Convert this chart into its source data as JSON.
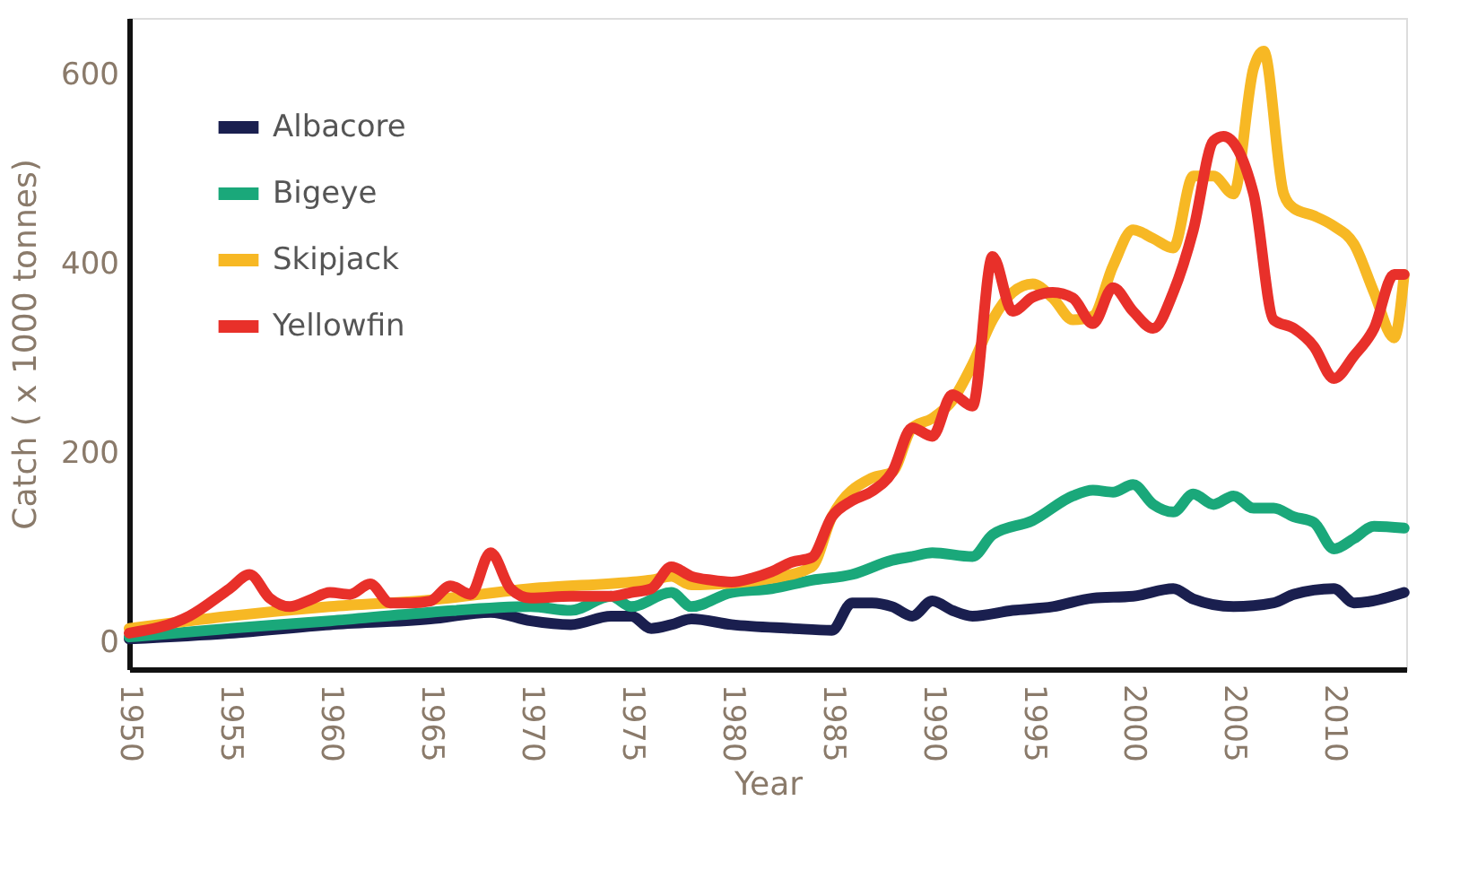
{
  "chart_data": {
    "type": "line",
    "xlabel": "Year",
    "ylabel": "Catch ( x 1000 tonnes)",
    "xlim": [
      1950,
      2013.6
    ],
    "xticks": [
      1950,
      1955,
      1960,
      1965,
      1970,
      1975,
      1980,
      1985,
      1990,
      1995,
      2000,
      2005,
      2010
    ],
    "ylim": [
      -28,
      660
    ],
    "yticks": [
      0,
      200,
      400,
      600
    ],
    "grid": false,
    "legend": "top left",
    "marker": "none",
    "line_style": "solid",
    "series": [
      {
        "name": "Albacore",
        "color": "#1a1f4f",
        "x": [
          1950,
          1955,
          1960,
          1965,
          1968,
          1970,
          1972,
          1974,
          1975,
          1976,
          1977,
          1978,
          1980,
          1983,
          1985,
          1986,
          1987,
          1988,
          1989,
          1990,
          1991,
          1992,
          1994,
          1996,
          1998,
          2000,
          2002,
          2003,
          2005,
          2007,
          2008,
          2010,
          2011,
          2013.5
        ],
        "values": [
          4,
          10,
          19,
          25,
          32,
          23,
          19,
          28,
          28,
          15,
          19,
          25,
          19,
          15,
          13,
          42,
          42,
          38,
          28,
          44,
          34,
          28,
          34,
          38,
          47,
          49,
          57,
          46,
          38,
          42,
          51,
          57,
          42,
          53
        ]
      },
      {
        "name": "Bigeye",
        "color": "#1aa87a",
        "x": [
          1950,
          1955,
          1960,
          1965,
          1970,
          1972,
          1974,
          1975,
          1977,
          1978,
          1980,
          1982,
          1984,
          1986,
          1988,
          1989,
          1990,
          1992,
          1993,
          1995,
          1997,
          1998,
          1999,
          2000,
          2001,
          2002,
          2003,
          2004,
          2005,
          2006,
          2007,
          2008,
          2009,
          2010,
          2011,
          2012,
          2013.5
        ],
        "values": [
          6,
          15,
          23,
          32,
          38,
          34,
          49,
          38,
          53,
          38,
          53,
          57,
          66,
          72,
          87,
          91,
          95,
          91,
          114,
          129,
          155,
          161,
          159,
          167,
          146,
          138,
          157,
          146,
          155,
          142,
          142,
          133,
          127,
          99,
          110,
          123,
          121
        ]
      },
      {
        "name": "Skipjack",
        "color": "#f7b824",
        "x": [
          1950,
          1955,
          1960,
          1965,
          1970,
          1975,
          1976,
          1977,
          1978,
          1980,
          1982,
          1984,
          1985,
          1987,
          1988,
          1989,
          1990,
          1991,
          1992,
          1993,
          1994,
          1995,
          1996,
          1997,
          1998,
          1999,
          2000,
          2001,
          2002,
          2003,
          2004,
          2005,
          2006,
          2006.5,
          2007.5,
          2008,
          2009,
          2010,
          2011,
          2012,
          2013,
          2013.5
        ],
        "values": [
          15,
          28,
          38,
          45,
          57,
          64,
          66,
          70,
          61,
          63,
          68,
          80,
          133,
          174,
          180,
          227,
          237,
          256,
          294,
          341,
          370,
          379,
          364,
          341,
          345,
          398,
          436,
          427,
          417,
          493,
          493,
          474,
          607,
          625,
          474,
          459,
          451,
          440,
          421,
          370,
          322,
          389
        ]
      },
      {
        "name": "Yellowfin",
        "color": "#e8302a",
        "x": [
          1950,
          1953,
          1955,
          1956,
          1957,
          1958,
          1959,
          1960,
          1961,
          1962,
          1963,
          1964,
          1965,
          1966,
          1967,
          1968,
          1969,
          1970,
          1972,
          1974,
          1975,
          1976,
          1977,
          1978,
          1979,
          1980,
          1981,
          1982,
          1983,
          1984,
          1985,
          1986,
          1987,
          1988,
          1989,
          1990,
          1991,
          1992,
          1993,
          1994,
          1995,
          1996,
          1997,
          1998,
          1999,
          2000,
          2001,
          2002,
          2003,
          2004,
          2004.5,
          2006,
          2007,
          2008,
          2009,
          2010,
          2011,
          2012,
          2013,
          2013.5
        ],
        "values": [
          10,
          28,
          57,
          72,
          47,
          38,
          45,
          53,
          51,
          62,
          42,
          42,
          44,
          60,
          51,
          95,
          57,
          47,
          49,
          49,
          53,
          57,
          80,
          70,
          66,
          64,
          68,
          75,
          85,
          90,
          133,
          150,
          160,
          180,
          227,
          218,
          262,
          250,
          408,
          350,
          365,
          370,
          364,
          337,
          375,
          350,
          332,
          370,
          436,
          530,
          535,
          474,
          341,
          332,
          313,
          279,
          303,
          332,
          389,
          389
        ]
      }
    ]
  }
}
